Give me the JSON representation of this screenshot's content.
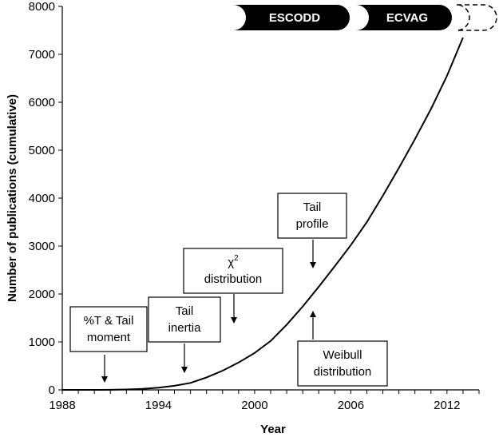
{
  "chart_data": {
    "type": "line",
    "xlabel": "Year",
    "ylabel": "Number of publications (cumulative)",
    "xlim": [
      1988,
      2014
    ],
    "ylim": [
      0,
      8000
    ],
    "x_ticks": [
      {
        "value": 1988,
        "label": "1988"
      },
      {
        "value": 1994,
        "label": "1994"
      },
      {
        "value": 2000,
        "label": "2000"
      },
      {
        "value": 2006,
        "label": "2006"
      },
      {
        "value": 2012,
        "label": "2012"
      }
    ],
    "y_ticks": [
      {
        "value": 0,
        "label": "0"
      },
      {
        "value": 1000,
        "label": "1000"
      },
      {
        "value": 2000,
        "label": "2000"
      },
      {
        "value": 3000,
        "label": "3000"
      },
      {
        "value": 4000,
        "label": "4000"
      },
      {
        "value": 5000,
        "label": "5000"
      },
      {
        "value": 6000,
        "label": "6000"
      },
      {
        "value": 7000,
        "label": "7000"
      },
      {
        "value": 8000,
        "label": "8000"
      }
    ],
    "grid": false,
    "series": [
      {
        "x": [
          1988,
          1989,
          1990,
          1991,
          1992,
          1993,
          1994,
          1995,
          1996,
          1997,
          1998,
          1999,
          2000,
          2001,
          2002,
          2003,
          2004,
          2005,
          2006,
          2007,
          2008,
          2009,
          2010,
          2011,
          2012,
          2013
        ],
        "y": [
          0,
          0,
          0,
          2,
          8,
          20,
          45,
          85,
          145,
          260,
          400,
          570,
          770,
          1020,
          1360,
          1740,
          2150,
          2580,
          3020,
          3500,
          4050,
          4630,
          5230,
          5860,
          6550,
          7350
        ]
      }
    ],
    "annotations": [
      {
        "lines": [
          "%T & Tail",
          "moment"
        ],
        "x": 1990,
        "y": 165,
        "arrow": "down"
      },
      {
        "lines": [
          "Tail",
          "inertia"
        ],
        "x": 1995,
        "y": 355,
        "arrow": "down"
      },
      {
        "lines": [
          "χ",
          "distribution"
        ],
        "sup": "2",
        "x": 1998,
        "y": 1400,
        "arrow": "down"
      },
      {
        "lines": [
          "Tail",
          "profile"
        ],
        "x": 2003,
        "y": 2540,
        "arrow": "down"
      },
      {
        "lines": [
          "Weibull",
          "distribution"
        ],
        "x": 2003,
        "y": 1600,
        "arrow": "up"
      }
    ],
    "phases": [
      {
        "label": "ESCODD",
        "style": "filled"
      },
      {
        "label": "ECVAG",
        "style": "filled"
      },
      {
        "label": "",
        "style": "dashed"
      }
    ]
  }
}
